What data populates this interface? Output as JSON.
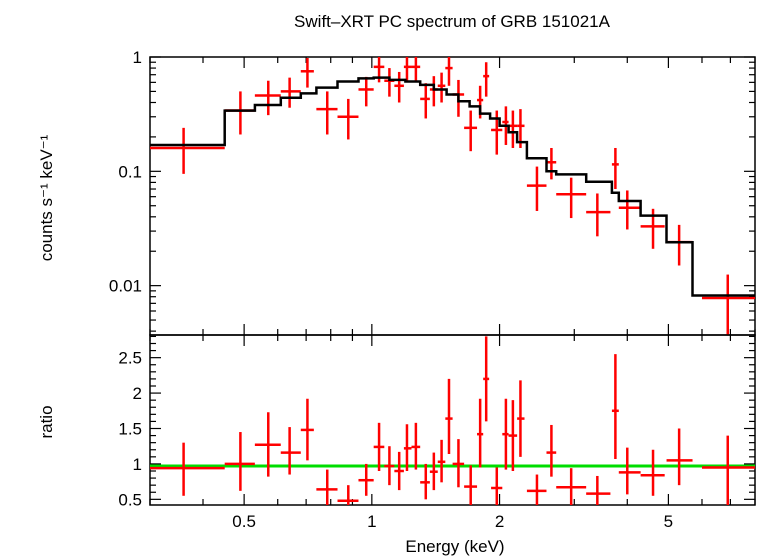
{
  "chart_data": {
    "type": "scatter",
    "title": "Swift–XRT PC spectrum of GRB 151021A",
    "xlabel": "Energy (keV)",
    "xscale": "log",
    "xlim": [
      0.3,
      8.0
    ],
    "xticks": [
      "0.5",
      "1",
      "2",
      "5"
    ],
    "xtick_values": [
      0.5,
      1,
      2,
      5
    ],
    "colors": {
      "data": "#ff0000",
      "model": "#000000",
      "ratio_line": "#00dd00",
      "axes": "#000000"
    },
    "panels": [
      {
        "name": "spectrum",
        "ylabel": "counts s⁻¹ keV⁻¹",
        "yscale": "log",
        "ylim": [
          0.0037,
          1.0
        ],
        "yticks": [
          "0.01",
          "0.1",
          "1"
        ],
        "ytick_values": [
          0.01,
          0.1,
          1
        ],
        "series": [
          {
            "type": "errorbar",
            "points": [
              {
                "x": 0.36,
                "xlo": 0.3,
                "xhi": 0.45,
                "y": 0.16,
                "ylo": 0.095,
                "yhi": 0.24
              },
              {
                "x": 0.49,
                "xlo": 0.45,
                "xhi": 0.53,
                "y": 0.34,
                "ylo": 0.21,
                "yhi": 0.5
              },
              {
                "x": 0.57,
                "xlo": 0.53,
                "xhi": 0.61,
                "y": 0.46,
                "ylo": 0.31,
                "yhi": 0.62
              },
              {
                "x": 0.64,
                "xlo": 0.61,
                "xhi": 0.68,
                "y": 0.5,
                "ylo": 0.36,
                "yhi": 0.66
              },
              {
                "x": 0.705,
                "xlo": 0.68,
                "xhi": 0.73,
                "y": 0.75,
                "ylo": 0.54,
                "yhi": 0.98
              },
              {
                "x": 0.785,
                "xlo": 0.74,
                "xhi": 0.83,
                "y": 0.35,
                "ylo": 0.21,
                "yhi": 0.5
              },
              {
                "x": 0.88,
                "xlo": 0.83,
                "xhi": 0.93,
                "y": 0.3,
                "ylo": 0.19,
                "yhi": 0.43
              },
              {
                "x": 0.97,
                "xlo": 0.93,
                "xhi": 1.01,
                "y": 0.52,
                "ylo": 0.37,
                "yhi": 0.67
              },
              {
                "x": 1.04,
                "xlo": 1.01,
                "xhi": 1.07,
                "y": 0.82,
                "ylo": 0.6,
                "yhi": 1.0
              },
              {
                "x": 1.1,
                "xlo": 1.07,
                "xhi": 1.13,
                "y": 0.62,
                "ylo": 0.45,
                "yhi": 0.8
              },
              {
                "x": 1.16,
                "xlo": 1.13,
                "xhi": 1.19,
                "y": 0.56,
                "ylo": 0.4,
                "yhi": 0.74
              },
              {
                "x": 1.21,
                "xlo": 1.19,
                "xhi": 1.24,
                "y": 0.82,
                "ylo": 0.6,
                "yhi": 1.0
              },
              {
                "x": 1.27,
                "xlo": 1.24,
                "xhi": 1.3,
                "y": 0.82,
                "ylo": 0.6,
                "yhi": 1.0
              },
              {
                "x": 1.34,
                "xlo": 1.3,
                "xhi": 1.37,
                "y": 0.43,
                "ylo": 0.29,
                "yhi": 0.59
              },
              {
                "x": 1.4,
                "xlo": 1.37,
                "xhi": 1.43,
                "y": 0.52,
                "ylo": 0.37,
                "yhi": 0.68
              },
              {
                "x": 1.46,
                "xlo": 1.43,
                "xhi": 1.49,
                "y": 0.56,
                "ylo": 0.4,
                "yhi": 0.73
              },
              {
                "x": 1.52,
                "xlo": 1.49,
                "xhi": 1.55,
                "y": 0.8,
                "ylo": 0.56,
                "yhi": 1.0
              },
              {
                "x": 1.6,
                "xlo": 1.55,
                "xhi": 1.65,
                "y": 0.47,
                "ylo": 0.3,
                "yhi": 0.63
              },
              {
                "x": 1.71,
                "xlo": 1.65,
                "xhi": 1.77,
                "y": 0.24,
                "ylo": 0.15,
                "yhi": 0.34
              },
              {
                "x": 1.8,
                "xlo": 1.77,
                "xhi": 1.83,
                "y": 0.42,
                "ylo": 0.29,
                "yhi": 0.56
              },
              {
                "x": 1.86,
                "xlo": 1.83,
                "xhi": 1.89,
                "y": 0.68,
                "ylo": 0.45,
                "yhi": 0.9
              },
              {
                "x": 1.97,
                "xlo": 1.91,
                "xhi": 2.03,
                "y": 0.23,
                "ylo": 0.14,
                "yhi": 0.34
              },
              {
                "x": 2.07,
                "xlo": 2.03,
                "xhi": 2.1,
                "y": 0.27,
                "ylo": 0.17,
                "yhi": 0.37
              },
              {
                "x": 2.15,
                "xlo": 2.1,
                "xhi": 2.2,
                "y": 0.25,
                "ylo": 0.16,
                "yhi": 0.34
              },
              {
                "x": 2.24,
                "xlo": 2.2,
                "xhi": 2.29,
                "y": 0.25,
                "ylo": 0.16,
                "yhi": 0.35
              },
              {
                "x": 2.45,
                "xlo": 2.32,
                "xhi": 2.58,
                "y": 0.075,
                "ylo": 0.045,
                "yhi": 0.11
              },
              {
                "x": 2.65,
                "xlo": 2.58,
                "xhi": 2.72,
                "y": 0.12,
                "ylo": 0.085,
                "yhi": 0.16
              },
              {
                "x": 2.95,
                "xlo": 2.72,
                "xhi": 3.2,
                "y": 0.063,
                "ylo": 0.039,
                "yhi": 0.088
              },
              {
                "x": 3.4,
                "xlo": 3.2,
                "xhi": 3.65,
                "y": 0.044,
                "ylo": 0.027,
                "yhi": 0.064
              },
              {
                "x": 3.75,
                "xlo": 3.68,
                "xhi": 3.82,
                "y": 0.115,
                "ylo": 0.07,
                "yhi": 0.16
              },
              {
                "x": 4.0,
                "xlo": 3.82,
                "xhi": 4.3,
                "y": 0.048,
                "ylo": 0.031,
                "yhi": 0.068
              },
              {
                "x": 4.6,
                "xlo": 4.3,
                "xhi": 4.9,
                "y": 0.033,
                "ylo": 0.021,
                "yhi": 0.047
              },
              {
                "x": 5.3,
                "xlo": 4.95,
                "xhi": 5.7,
                "y": 0.024,
                "ylo": 0.015,
                "yhi": 0.034
              },
              {
                "x": 6.9,
                "xlo": 6.0,
                "xhi": 8.0,
                "y": 0.0078,
                "ylo": 0.0037,
                "yhi": 0.0125
              }
            ]
          },
          {
            "type": "step",
            "x": [
              0.3,
              0.45,
              0.53,
              0.61,
              0.68,
              0.74,
              0.83,
              0.93,
              1.01,
              1.1,
              1.2,
              1.3,
              1.4,
              1.5,
              1.6,
              1.7,
              1.8,
              1.9,
              2.0,
              2.1,
              2.2,
              2.32,
              2.58,
              2.72,
              3.2,
              3.68,
              3.82,
              4.3,
              4.95,
              5.7,
              8.0
            ],
            "y": [
              0.17,
              0.34,
              0.38,
              0.44,
              0.48,
              0.54,
              0.61,
              0.65,
              0.66,
              0.63,
              0.61,
              0.57,
              0.52,
              0.47,
              0.41,
              0.37,
              0.32,
              0.29,
              0.25,
              0.22,
              0.18,
              0.13,
              0.1,
              0.094,
              0.081,
              0.065,
              0.055,
              0.041,
              0.024,
              0.0082
            ]
          }
        ]
      },
      {
        "name": "ratio",
        "ylabel": "ratio",
        "yscale": "linear",
        "ylim": [
          0.42,
          2.82
        ],
        "yticks": [
          "0.5",
          "1",
          "1.5",
          "2",
          "2.5"
        ],
        "ytick_values": [
          0.5,
          1,
          1.5,
          2,
          2.5
        ],
        "reference_line": 0.97,
        "series": [
          {
            "type": "errorbar",
            "points": [
              {
                "x": 0.36,
                "xlo": 0.3,
                "xhi": 0.45,
                "y": 0.94,
                "ylo": 0.55,
                "yhi": 1.3
              },
              {
                "x": 0.49,
                "xlo": 0.45,
                "xhi": 0.53,
                "y": 1.0,
                "ylo": 0.62,
                "yhi": 1.45
              },
              {
                "x": 0.57,
                "xlo": 0.53,
                "xhi": 0.61,
                "y": 1.27,
                "ylo": 0.82,
                "yhi": 1.73
              },
              {
                "x": 0.64,
                "xlo": 0.61,
                "xhi": 0.68,
                "y": 1.16,
                "ylo": 0.85,
                "yhi": 1.52
              },
              {
                "x": 0.705,
                "xlo": 0.68,
                "xhi": 0.73,
                "y": 1.48,
                "ylo": 1.05,
                "yhi": 1.92
              },
              {
                "x": 0.785,
                "xlo": 0.74,
                "xhi": 0.83,
                "y": 0.64,
                "ylo": 0.42,
                "yhi": 0.92
              },
              {
                "x": 0.88,
                "xlo": 0.83,
                "xhi": 0.93,
                "y": 0.48,
                "ylo": 0.42,
                "yhi": 0.7
              },
              {
                "x": 0.97,
                "xlo": 0.93,
                "xhi": 1.01,
                "y": 0.77,
                "ylo": 0.55,
                "yhi": 1.0
              },
              {
                "x": 1.04,
                "xlo": 1.01,
                "xhi": 1.07,
                "y": 1.24,
                "ylo": 0.9,
                "yhi": 1.58
              },
              {
                "x": 1.1,
                "xlo": 1.07,
                "xhi": 1.13,
                "y": 0.97,
                "ylo": 0.7,
                "yhi": 1.25
              },
              {
                "x": 1.16,
                "xlo": 1.13,
                "xhi": 1.19,
                "y": 0.9,
                "ylo": 0.63,
                "yhi": 1.17
              },
              {
                "x": 1.21,
                "xlo": 1.19,
                "xhi": 1.24,
                "y": 1.22,
                "ylo": 0.9,
                "yhi": 1.56
              },
              {
                "x": 1.27,
                "xlo": 1.24,
                "xhi": 1.3,
                "y": 1.24,
                "ylo": 0.92,
                "yhi": 1.58
              },
              {
                "x": 1.34,
                "xlo": 1.3,
                "xhi": 1.37,
                "y": 0.74,
                "ylo": 0.5,
                "yhi": 1.0
              },
              {
                "x": 1.4,
                "xlo": 1.37,
                "xhi": 1.43,
                "y": 0.89,
                "ylo": 0.63,
                "yhi": 1.16
              },
              {
                "x": 1.46,
                "xlo": 1.43,
                "xhi": 1.49,
                "y": 1.03,
                "ylo": 0.74,
                "yhi": 1.34
              },
              {
                "x": 1.52,
                "xlo": 1.49,
                "xhi": 1.55,
                "y": 1.64,
                "ylo": 1.14,
                "yhi": 2.2
              },
              {
                "x": 1.6,
                "xlo": 1.55,
                "xhi": 1.65,
                "y": 1.0,
                "ylo": 0.67,
                "yhi": 1.35
              },
              {
                "x": 1.71,
                "xlo": 1.65,
                "xhi": 1.77,
                "y": 0.68,
                "ylo": 0.42,
                "yhi": 0.98
              },
              {
                "x": 1.8,
                "xlo": 1.77,
                "xhi": 1.83,
                "y": 1.42,
                "ylo": 0.95,
                "yhi": 1.92
              },
              {
                "x": 1.86,
                "xlo": 1.83,
                "xhi": 1.89,
                "y": 2.2,
                "ylo": 1.6,
                "yhi": 2.8
              },
              {
                "x": 1.97,
                "xlo": 1.91,
                "xhi": 2.03,
                "y": 0.66,
                "ylo": 0.42,
                "yhi": 0.95
              },
              {
                "x": 2.07,
                "xlo": 2.03,
                "xhi": 2.1,
                "y": 1.42,
                "ylo": 0.92,
                "yhi": 1.92
              },
              {
                "x": 2.15,
                "xlo": 2.1,
                "xhi": 2.2,
                "y": 1.4,
                "ylo": 0.9,
                "yhi": 1.9
              },
              {
                "x": 2.24,
                "xlo": 2.2,
                "xhi": 2.29,
                "y": 1.64,
                "ylo": 1.1,
                "yhi": 2.18
              },
              {
                "x": 2.45,
                "xlo": 2.32,
                "xhi": 2.58,
                "y": 0.62,
                "ylo": 0.42,
                "yhi": 0.85
              },
              {
                "x": 2.65,
                "xlo": 2.58,
                "xhi": 2.72,
                "y": 1.16,
                "ylo": 0.82,
                "yhi": 1.55
              },
              {
                "x": 2.95,
                "xlo": 2.72,
                "xhi": 3.2,
                "y": 0.67,
                "ylo": 0.42,
                "yhi": 0.94
              },
              {
                "x": 3.4,
                "xlo": 3.2,
                "xhi": 3.65,
                "y": 0.58,
                "ylo": 0.42,
                "yhi": 0.83
              },
              {
                "x": 3.75,
                "xlo": 3.68,
                "xhi": 3.82,
                "y": 1.75,
                "ylo": 1.07,
                "yhi": 2.55
              },
              {
                "x": 4.0,
                "xlo": 3.82,
                "xhi": 4.3,
                "y": 0.88,
                "ylo": 0.57,
                "yhi": 1.23
              },
              {
                "x": 4.6,
                "xlo": 4.3,
                "xhi": 4.9,
                "y": 0.84,
                "ylo": 0.55,
                "yhi": 1.2
              },
              {
                "x": 5.3,
                "xlo": 4.95,
                "xhi": 5.7,
                "y": 1.05,
                "ylo": 0.7,
                "yhi": 1.5
              },
              {
                "x": 6.9,
                "xlo": 6.0,
                "xhi": 8.0,
                "y": 0.95,
                "ylo": 0.42,
                "yhi": 1.4
              }
            ]
          }
        ]
      }
    ]
  }
}
